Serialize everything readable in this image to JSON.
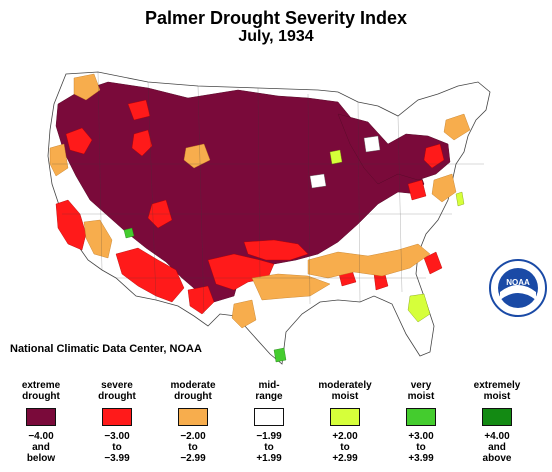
{
  "title": "Palmer Drought Severity Index",
  "subtitle": "July, 1934",
  "source": "National Climatic Data Center, NOAA",
  "logo_text": "NOAA",
  "colors": {
    "extreme_drought": "#7a0a3a",
    "severe_drought": "#ff1a1a",
    "moderate_drought": "#f7ad4d",
    "mid_range": "#ffffff",
    "moderately_moist": "#d6ff3a",
    "very_moist": "#44cc2e",
    "extremely_moist": "#138a13",
    "noaa_blue": "#1a4aa6"
  },
  "legend": [
    {
      "label": "extreme\ndrought",
      "range": "−4.00\nand\nbelow",
      "color": "#7a0a3a"
    },
    {
      "label": "severe\ndrought",
      "range": "−3.00\nto\n−3.99",
      "color": "#ff1a1a"
    },
    {
      "label": "moderate\ndrought",
      "range": "−2.00\nto\n−2.99",
      "color": "#f7ad4d"
    },
    {
      "label": "mid-\nrange",
      "range": "−1.99\nto\n+1.99",
      "color": "#ffffff"
    },
    {
      "label": "moderately\nmoist",
      "range": "+2.00\nto\n+2.99",
      "color": "#d6ff3a"
    },
    {
      "label": "very\nmoist",
      "range": "+3.00\nto\n+3.99",
      "color": "#44cc2e"
    },
    {
      "label": "extremely\nmoist",
      "range": "+4.00\nand\nabove",
      "color": "#138a13"
    }
  ]
}
